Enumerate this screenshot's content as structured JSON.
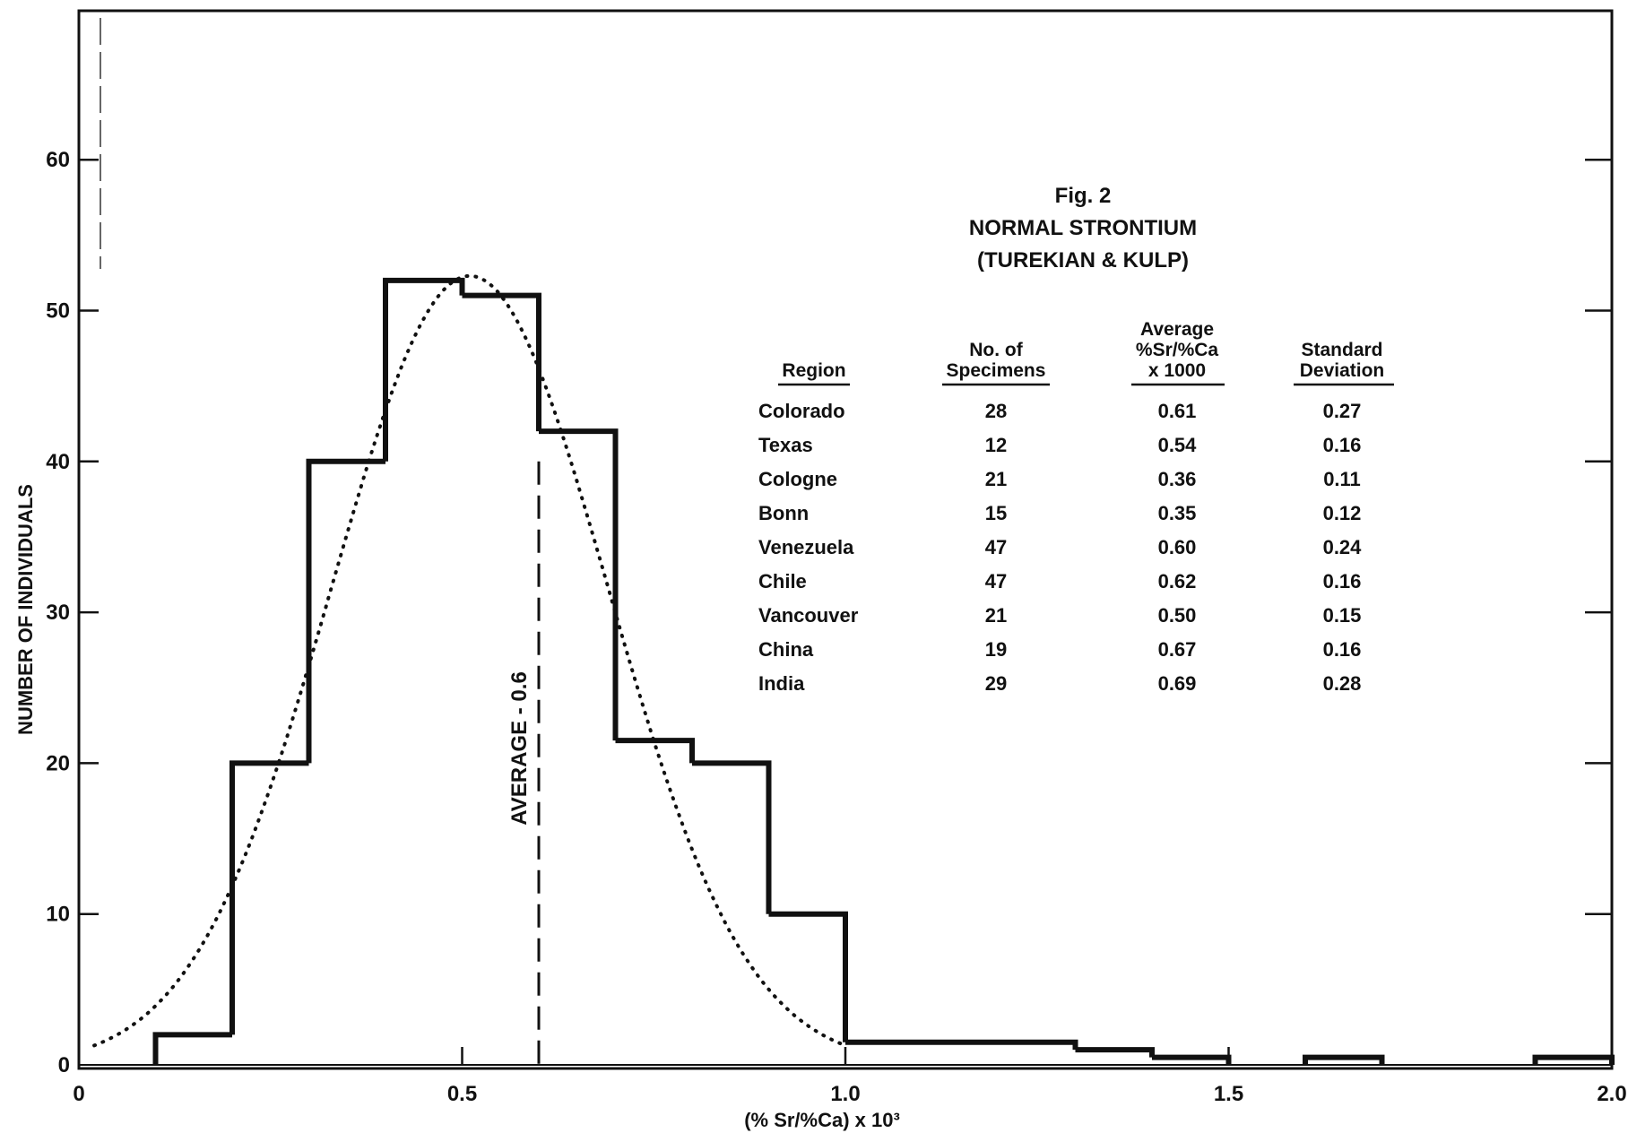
{
  "chart_data": {
    "type": "bar",
    "title": "Fig. 2",
    "subtitle": "NORMAL STRONTIUM",
    "source_note": "(TUREKIAN & KULP)",
    "xlabel": "(% Sr/%Ca) x 10³",
    "ylabel": "NUMBER OF INDIVIDUALS",
    "xlim": [
      0,
      2.0
    ],
    "ylim": [
      0,
      70
    ],
    "x_ticks": [
      "0",
      "0.5",
      "1.0",
      "1.5",
      "2.0"
    ],
    "y_ticks": [
      "0",
      "10",
      "20",
      "30",
      "40",
      "50",
      "60"
    ],
    "histogram_bins": [
      {
        "x0": 0.1,
        "x1": 0.2,
        "count": 2
      },
      {
        "x0": 0.2,
        "x1": 0.3,
        "count": 20
      },
      {
        "x0": 0.3,
        "x1": 0.4,
        "count": 40
      },
      {
        "x0": 0.4,
        "x1": 0.5,
        "count": 52
      },
      {
        "x0": 0.5,
        "x1": 0.6,
        "count": 51
      },
      {
        "x0": 0.6,
        "x1": 0.7,
        "count": 42
      },
      {
        "x0": 0.7,
        "x1": 0.8,
        "count": 21.5
      },
      {
        "x0": 0.8,
        "x1": 0.9,
        "count": 20
      },
      {
        "x0": 0.9,
        "x1": 1.0,
        "count": 10
      },
      {
        "x0": 1.0,
        "x1": 1.3,
        "count": 1.5
      },
      {
        "x0": 1.3,
        "x1": 1.4,
        "count": 1
      },
      {
        "x0": 1.4,
        "x1": 1.5,
        "count": 0.5
      },
      {
        "x0": 1.6,
        "x1": 1.7,
        "count": 0.5
      },
      {
        "x0": 1.9,
        "x1": 2.0,
        "count": 0.5
      }
    ],
    "normal_curve": {
      "mean": 0.51,
      "sd": 0.18,
      "peak": 52.3,
      "x_range": [
        0.02,
        1.0
      ],
      "style": "dotted"
    },
    "average_line": {
      "x": 0.6,
      "label": "AVERAGE - 0.6",
      "style": "dashed"
    },
    "grid": false,
    "table": {
      "headers": {
        "region": [
          "Region"
        ],
        "specimens": [
          "No. of",
          "Specimens"
        ],
        "average": [
          "Average",
          "%Sr/%Ca",
          "x 1000"
        ],
        "sd": [
          "Standard",
          "Deviation"
        ]
      },
      "rows": [
        {
          "region": "Colorado",
          "specimens": "28",
          "average": "0.61",
          "sd": "0.27"
        },
        {
          "region": "Texas",
          "specimens": "12",
          "average": "0.54",
          "sd": "0.16"
        },
        {
          "region": "Cologne",
          "specimens": "21",
          "average": "0.36",
          "sd": "0.11"
        },
        {
          "region": "Bonn",
          "specimens": "15",
          "average": "0.35",
          "sd": "0.12"
        },
        {
          "region": "Venezuela",
          "specimens": "47",
          "average": "0.60",
          "sd": "0.24"
        },
        {
          "region": "Chile",
          "specimens": "47",
          "average": "0.62",
          "sd": "0.16"
        },
        {
          "region": "Vancouver",
          "specimens": "21",
          "average": "0.50",
          "sd": "0.15"
        },
        {
          "region": "China",
          "specimens": "19",
          "average": "0.67",
          "sd": "0.16"
        },
        {
          "region": "India",
          "specimens": "29",
          "average": "0.69",
          "sd": "0.28"
        }
      ]
    }
  }
}
